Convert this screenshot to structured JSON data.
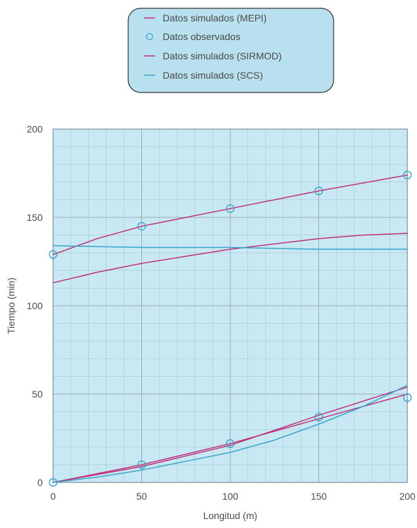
{
  "chart_data": {
    "type": "line",
    "title": "",
    "xlabel": "Longitud (m)",
    "ylabel": "Tiempo (min)",
    "xlim": [
      0,
      200
    ],
    "ylim": [
      0,
      200
    ],
    "x_ticks": [
      "0",
      "50",
      "100",
      "150",
      "200"
    ],
    "y_ticks": [
      "0",
      "50",
      "100",
      "150",
      "200"
    ],
    "grid": true,
    "legend_position": "top-center",
    "colors": {
      "plot_background": "#c8e9f4",
      "legend_background": "#b8e0ee",
      "grid": "#8a9aa8",
      "magenta": "#c0307a",
      "cyan": "#3aa5c8"
    },
    "legend": [
      {
        "label": "Datos simulados (MEPI)",
        "marker": "line",
        "color": "#c0307a"
      },
      {
        "label": "Datos observados",
        "marker": "circle",
        "color": "#3aa5c8"
      },
      {
        "label": "Datos simulados (SIRMOD)",
        "marker": "line",
        "color": "#c0307a"
      },
      {
        "label": "Datos simulados (SCS)",
        "marker": "line",
        "color": "#3aa5c8"
      }
    ],
    "series": [
      {
        "name": "Datos simulados (MEPI)",
        "kind": "line",
        "color": "#c0307a",
        "group": "avance",
        "points": [
          [
            0,
            0
          ],
          [
            50,
            10
          ],
          [
            100,
            22
          ],
          [
            150,
            36
          ],
          [
            200,
            50
          ]
        ]
      },
      {
        "name": "Datos simulados (SIRMOD)",
        "kind": "line",
        "color": "#c0307a",
        "group": "avance",
        "points": [
          [
            0,
            0
          ],
          [
            50,
            9
          ],
          [
            100,
            21
          ],
          [
            150,
            38
          ],
          [
            200,
            54
          ]
        ]
      },
      {
        "name": "Datos simulados (SCS)",
        "kind": "line",
        "color": "#3aa5c8",
        "group": "avance",
        "points": [
          [
            0,
            0
          ],
          [
            25,
            3
          ],
          [
            50,
            7
          ],
          [
            75,
            12
          ],
          [
            100,
            17
          ],
          [
            125,
            24
          ],
          [
            150,
            33
          ],
          [
            175,
            43
          ],
          [
            200,
            55
          ]
        ]
      },
      {
        "name": "Datos observados",
        "kind": "scatter",
        "color": "#3aa5c8",
        "group": "avance",
        "points": [
          [
            0,
            0
          ],
          [
            50,
            10
          ],
          [
            100,
            22
          ],
          [
            150,
            37
          ],
          [
            200,
            48
          ]
        ]
      },
      {
        "name": "Datos simulados (MEPI)",
        "kind": "line",
        "color": "#c0307a",
        "group": "receso",
        "points": [
          [
            0,
            129
          ],
          [
            25,
            138
          ],
          [
            50,
            145
          ],
          [
            100,
            155
          ],
          [
            150,
            165
          ],
          [
            200,
            174
          ]
        ]
      },
      {
        "name": "Datos simulados (SIRMOD)",
        "kind": "line",
        "color": "#c0307a",
        "group": "receso",
        "points": [
          [
            0,
            113
          ],
          [
            25,
            119
          ],
          [
            50,
            124
          ],
          [
            75,
            128
          ],
          [
            100,
            132
          ],
          [
            125,
            135
          ],
          [
            150,
            138
          ],
          [
            175,
            140
          ],
          [
            200,
            141
          ]
        ]
      },
      {
        "name": "Datos simulados (SCS)",
        "kind": "line",
        "color": "#3aa5c8",
        "group": "receso",
        "points": [
          [
            0,
            134
          ],
          [
            50,
            133
          ],
          [
            100,
            133
          ],
          [
            150,
            132
          ],
          [
            200,
            132
          ]
        ]
      },
      {
        "name": "Datos observados",
        "kind": "scatter",
        "color": "#3aa5c8",
        "group": "receso",
        "points": [
          [
            0,
            129
          ],
          [
            50,
            145
          ],
          [
            100,
            155
          ],
          [
            150,
            165
          ],
          [
            200,
            174
          ]
        ]
      }
    ]
  }
}
